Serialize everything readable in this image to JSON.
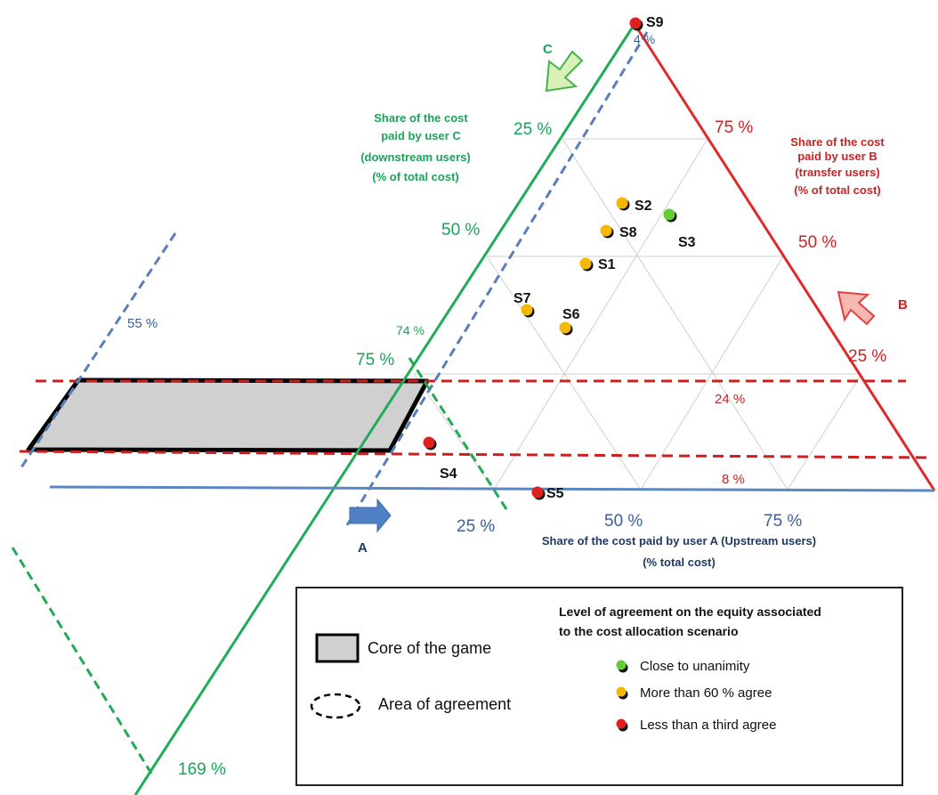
{
  "axes": {
    "c_title_lines": [
      "Share of the  cost",
      "paid by user C",
      "(downstream users)",
      "(% of total cost)"
    ],
    "b_title_lines": [
      "Share of the cost",
      "paid  by user B",
      "(transfer users)",
      "(% of total cost)"
    ],
    "a_title_lines": [
      "Share of the cost paid by user A (Upstream users)",
      "(% total cost)"
    ],
    "c_ticks": [
      "25 %",
      "50 %",
      "75 %"
    ],
    "b_ticks": [
      "75 %",
      "50 %",
      "25 %"
    ],
    "a_ticks": [
      "25 %",
      "50 %",
      "75 %"
    ],
    "arrow_labels": {
      "a": "A",
      "b": "B",
      "c": "C"
    }
  },
  "annotations": {
    "c_upper_pct": "4 %",
    "c_lower_pct": "74 %",
    "c_far_pct": "169 %",
    "blue_far_pct": "55 %",
    "upper_red_pct": "24 %",
    "lower_red_pct": "8 %"
  },
  "scenarios": [
    {
      "label": "S9",
      "agreement": "low"
    },
    {
      "label": "S2",
      "agreement": "medium"
    },
    {
      "label": "S3",
      "agreement": "high"
    },
    {
      "label": "S8",
      "agreement": "medium"
    },
    {
      "label": "S1",
      "agreement": "medium"
    },
    {
      "label": "S7",
      "agreement": "medium"
    },
    {
      "label": "S6",
      "agreement": "medium"
    },
    {
      "label": "S4",
      "agreement": "low"
    },
    {
      "label": "S5",
      "agreement": "low"
    }
  ],
  "legend": {
    "core_label": "Core of the game",
    "area_label": "Area of agreement",
    "title_lines": [
      "Level of agreement on the equity associated",
      "to the cost allocation scenario"
    ],
    "items": [
      {
        "label": "Close to unanimity",
        "color": "#66cc33"
      },
      {
        "label": "More than 60 % agree",
        "color": "#f5b800"
      },
      {
        "label": "Less than a third agree",
        "color": "#e02020"
      }
    ]
  },
  "colors": {
    "green_axis": "#1fad55",
    "red_axis": "#e02a2a",
    "blue_axis": "#5a86c2",
    "dashed_red": "#cc2020",
    "dashed_blue": "#5a7fb8",
    "dashed_green": "#22aa55",
    "core_fill": "#d0d0d0",
    "agreement_high": "#66cc33",
    "agreement_medium": "#f5b800",
    "agreement_low": "#e02020"
  }
}
